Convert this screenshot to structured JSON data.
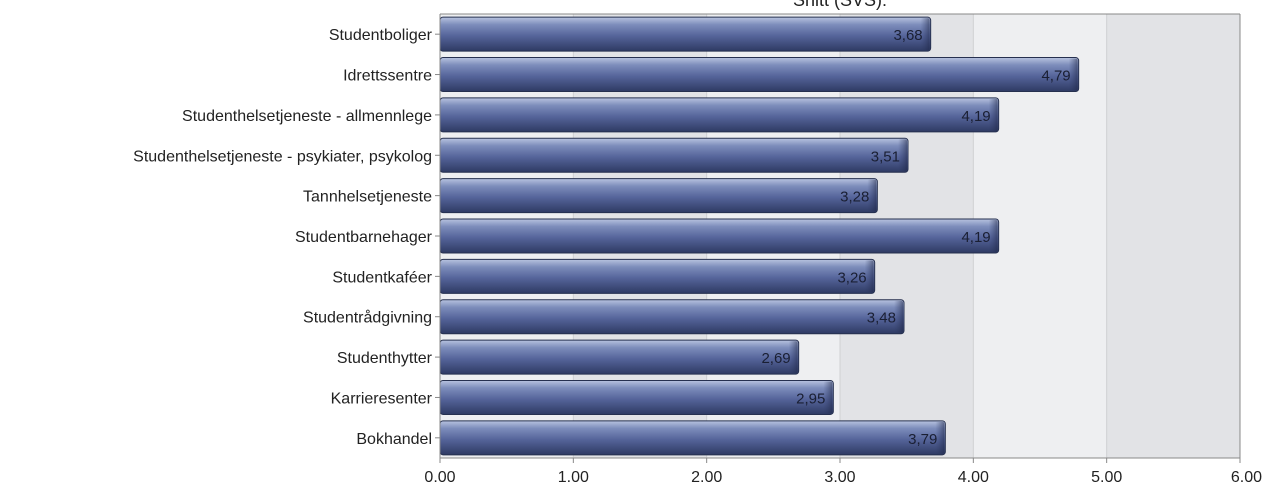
{
  "chart_data": {
    "type": "bar",
    "orientation": "horizontal",
    "title": "Snitt (SVS):",
    "categories": [
      "Studentboliger",
      "Idrettssentre",
      "Studenthelsetjeneste - allmennlege",
      "Studenthelsetjeneste - psykiater, psykolog",
      "Tannhelsetjeneste",
      "Studentbarnehager",
      "Studentkaféer",
      "Studentrådgivning",
      "Studenthytter",
      "Karrieresenter",
      "Bokhandel"
    ],
    "values": [
      3.68,
      4.79,
      4.19,
      3.51,
      3.28,
      4.19,
      3.26,
      3.48,
      2.69,
      2.95,
      3.79
    ],
    "value_labels": [
      "3,68",
      "4,79",
      "4,19",
      "3,51",
      "3,28",
      "4,19",
      "3,26",
      "3,48",
      "2,69",
      "2,95",
      "3,79"
    ],
    "xlim": [
      0,
      6
    ],
    "xticks": [
      "0.00",
      "1.00",
      "2.00",
      "3.00",
      "4.00",
      "5.00",
      "6.00"
    ],
    "grid": "vertical",
    "colors": {
      "bar": "#5a6a9c",
      "bar_light": "#9aa8cf",
      "bar_dark": "#2e3a63",
      "plot_bg": "#eeeff1",
      "plot_bg_alt": "#e2e3e6",
      "grid": "#d0d0d3",
      "axis": "#888888"
    }
  }
}
